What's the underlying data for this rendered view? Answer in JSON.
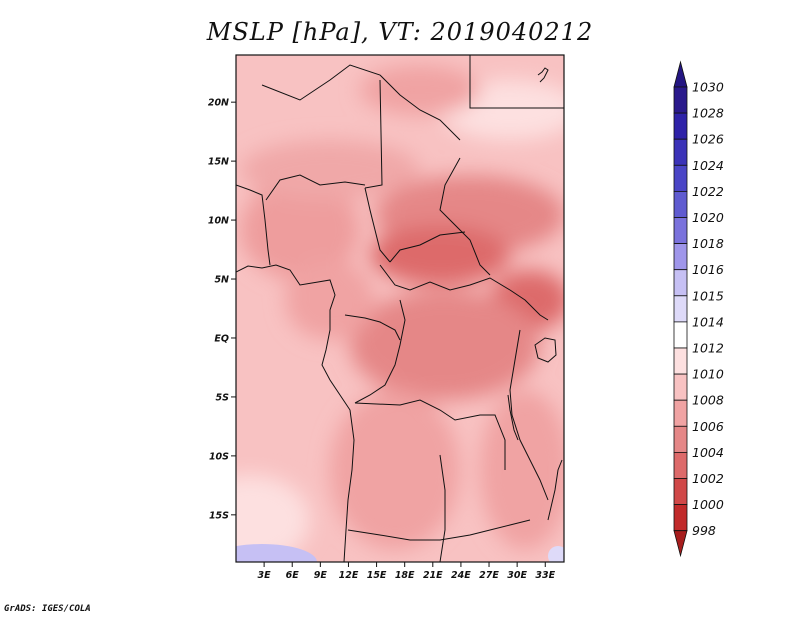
{
  "title": "MSLP [hPa], VT: 2019040212",
  "credit": "GrADS: IGES/COLA",
  "map": {
    "region": "Central Africa",
    "lon_range": [
      0,
      35
    ],
    "lat_range": [
      -19,
      24
    ],
    "lat_ticks": [
      {
        "value": 20,
        "label": "20N"
      },
      {
        "value": 15,
        "label": "15N"
      },
      {
        "value": 10,
        "label": "10N"
      },
      {
        "value": 5,
        "label": "5N"
      },
      {
        "value": 0,
        "label": "EQ"
      },
      {
        "value": -5,
        "label": "5S"
      },
      {
        "value": -10,
        "label": "10S"
      },
      {
        "value": -15,
        "label": "15S"
      }
    ],
    "lon_ticks": [
      {
        "value": 3,
        "label": "3E"
      },
      {
        "value": 6,
        "label": "6E"
      },
      {
        "value": 9,
        "label": "9E"
      },
      {
        "value": 12,
        "label": "12E"
      },
      {
        "value": 15,
        "label": "15E"
      },
      {
        "value": 18,
        "label": "18E"
      },
      {
        "value": 21,
        "label": "21E"
      },
      {
        "value": 24,
        "label": "24E"
      },
      {
        "value": 27,
        "label": "27E"
      },
      {
        "value": 30,
        "label": "30E"
      },
      {
        "value": 33,
        "label": "33E"
      }
    ]
  },
  "colorbar": {
    "levels": [
      {
        "label": "1030",
        "color": "#2a1a8c"
      },
      {
        "label": "1028",
        "color": "#2e22a8"
      },
      {
        "label": "1026",
        "color": "#3b33b8"
      },
      {
        "label": "1024",
        "color": "#4a45c6"
      },
      {
        "label": "1022",
        "color": "#5f5bd0"
      },
      {
        "label": "1020",
        "color": "#7a72dc"
      },
      {
        "label": "1018",
        "color": "#9f96ea"
      },
      {
        "label": "1016",
        "color": "#c6c0f4"
      },
      {
        "label": "1015",
        "color": "#dedaf9"
      },
      {
        "label": "1014",
        "color": "#ffffff"
      },
      {
        "label": "1012",
        "color": "#fde0e0"
      },
      {
        "label": "1010",
        "color": "#f8c2c2"
      },
      {
        "label": "1008",
        "color": "#f0a3a3"
      },
      {
        "label": "1006",
        "color": "#e58787"
      },
      {
        "label": "1004",
        "color": "#dd6a6a"
      },
      {
        "label": "1002",
        "color": "#d04848"
      },
      {
        "label": "1000",
        "color": "#c12a2a"
      },
      {
        "label": "998",
        "color": "#a71d1d"
      }
    ],
    "top_color": "#241682",
    "bottom_color": "#a71d1d"
  }
}
